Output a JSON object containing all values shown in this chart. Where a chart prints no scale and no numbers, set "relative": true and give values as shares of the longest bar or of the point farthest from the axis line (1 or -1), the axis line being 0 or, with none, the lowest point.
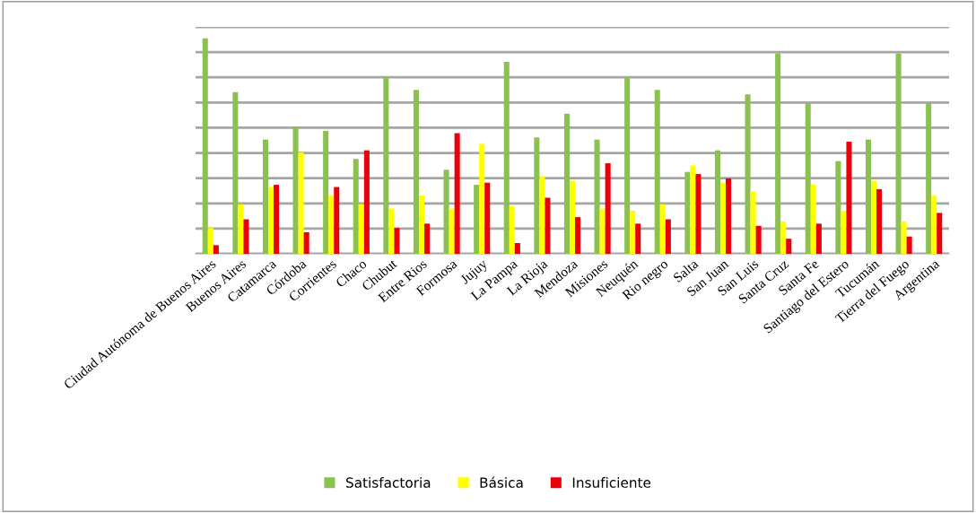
{
  "chart_data": {
    "type": "bar",
    "relative": true,
    "grid": "y",
    "legend": "bottom",
    "categories": [
      "Ciudad Autónoma de Buenos Aires",
      "Buenos Aires",
      "Catamarca",
      "Córdoba",
      "Corrientes",
      "Chaco",
      "Chubut",
      "Entre Rios",
      "Formosa",
      "Jujuy",
      "La Pampa",
      "La Rioja",
      "Mendoza",
      "Misiones",
      "Neuquén",
      "Rio negro",
      "Salta",
      "San Juan",
      "San Luis",
      "Santa Cruz",
      "Santa Fe",
      "Santiago del Estero",
      "Tucumán",
      "Tierra del Fuego",
      "Argentina"
    ],
    "series": [
      {
        "name": "Satisfactoria",
        "color": "#8cc152",
        "values": [
          1,
          0.75,
          0.53,
          0.59,
          0.57,
          0.44,
          0.82,
          0.76,
          0.39,
          0.32,
          0.89,
          0.54,
          0.65,
          0.53,
          0.82,
          0.76,
          0.38,
          0.48,
          0.74,
          0.93,
          0.7,
          0.43,
          0.53,
          0.93,
          0.7
        ]
      },
      {
        "name": "Básica",
        "color": "#ffff00",
        "values": [
          0.12,
          0.23,
          0.31,
          0.47,
          0.27,
          0.23,
          0.21,
          0.27,
          0.21,
          0.51,
          0.22,
          0.36,
          0.34,
          0.21,
          0.2,
          0.23,
          0.41,
          0.33,
          0.29,
          0.15,
          0.32,
          0.2,
          0.34,
          0.15,
          0.27
        ]
      },
      {
        "name": "Insuficiente",
        "color": "#e8000b",
        "values": [
          0.04,
          0.16,
          0.32,
          0.1,
          0.31,
          0.48,
          0.12,
          0.14,
          0.56,
          0.33,
          0.05,
          0.26,
          0.17,
          0.42,
          0.14,
          0.16,
          0.37,
          0.35,
          0.13,
          0.07,
          0.14,
          0.52,
          0.3,
          0.08,
          0.19
        ]
      }
    ]
  }
}
